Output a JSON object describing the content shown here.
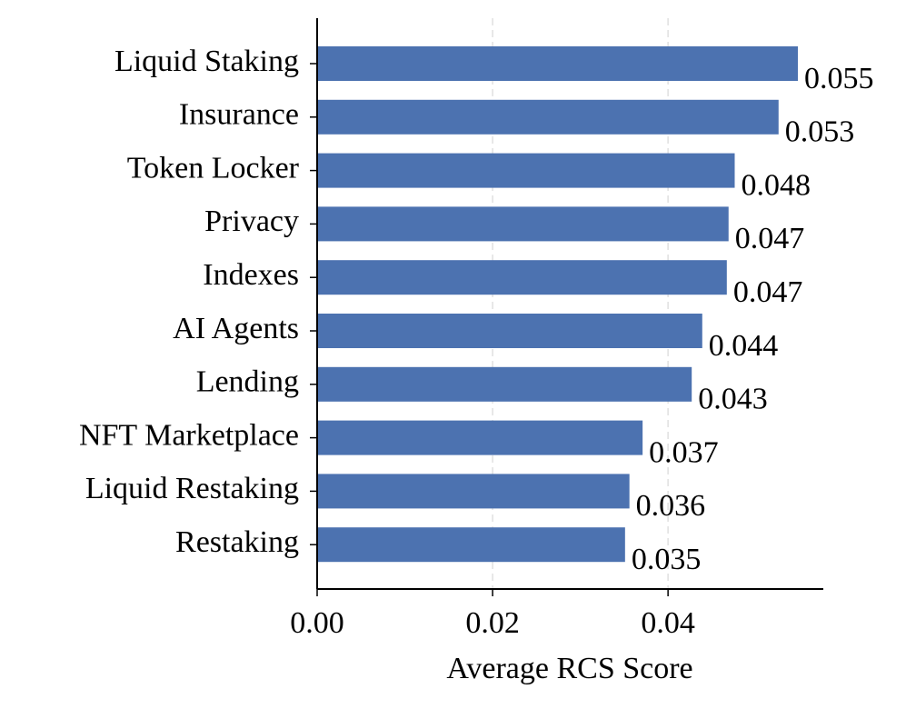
{
  "chart_data": {
    "type": "barh",
    "xlabel": "Average RCS Score",
    "categories": [
      "Liquid Staking",
      "Insurance",
      "Token Locker",
      "Privacy",
      "Indexes",
      "AI Agents",
      "Lending",
      "NFT Marketplace",
      "Liquid Restaking",
      "Restaking"
    ],
    "values": [
      0.0548,
      0.0526,
      0.0476,
      0.0469,
      0.0467,
      0.0439,
      0.0427,
      0.0371,
      0.0356,
      0.0351
    ],
    "value_labels": [
      "0.055",
      "0.053",
      "0.048",
      "0.047",
      "0.047",
      "0.044",
      "0.043",
      "0.037",
      "0.036",
      "0.035"
    ],
    "color": "#4c72b0",
    "xlim": [
      0,
      0.0577
    ],
    "xticks": [
      {
        "value": 0,
        "label": "0.00"
      },
      0.02,
      0.04
    ],
    "grid": true
  }
}
